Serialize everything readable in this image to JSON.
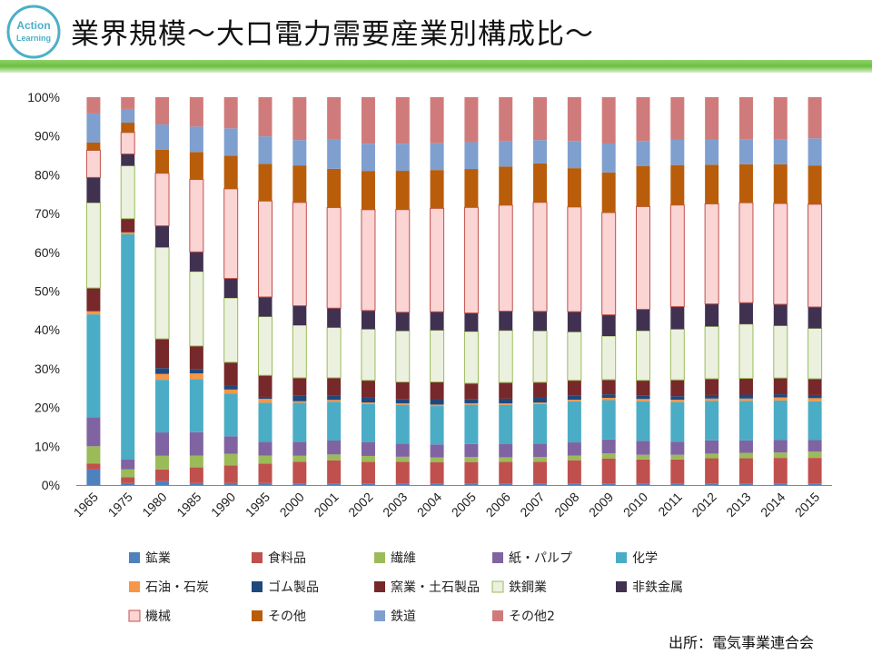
{
  "slide": {
    "title": "業界規模～大口電力需要産業別構成比～",
    "logo_text_line1": "Action",
    "logo_text_line2": "Learning",
    "source": "出所：電気事業連合会",
    "accent_color": "#6cbf3f",
    "logo_color": "#4bb0c8"
  },
  "chart_data": {
    "type": "bar",
    "stacked": true,
    "percent": true,
    "title": "",
    "xlabel": "",
    "ylabel": "",
    "ylim": [
      0,
      100
    ],
    "yticks": [
      "0%",
      "10%",
      "20%",
      "30%",
      "40%",
      "50%",
      "60%",
      "70%",
      "80%",
      "90%",
      "100%"
    ],
    "grid": false,
    "legend_position": "bottom",
    "categories": [
      "1965",
      "1975",
      "1980",
      "1985",
      "1990",
      "1995",
      "2000",
      "2001",
      "2002",
      "2003",
      "2004",
      "2005",
      "2006",
      "2007",
      "2008",
      "2009",
      "2010",
      "2011",
      "2012",
      "2013",
      "2014",
      "2015"
    ],
    "series": [
      {
        "name": "鉱業",
        "color": "#4f81bd",
        "values": [
          4,
          0.5,
          1,
          0.5,
          0.5,
          0.5,
          0.4,
          0.4,
          0.4,
          0.4,
          0.4,
          0.4,
          0.4,
          0.4,
          0.4,
          0.4,
          0.4,
          0.4,
          0.4,
          0.4,
          0.4,
          0.4
        ]
      },
      {
        "name": "食料品",
        "color": "#c0504d",
        "values": [
          1.5,
          1.5,
          3,
          4,
          4.5,
          5,
          5.6,
          6,
          5.6,
          5.6,
          5.6,
          5.6,
          5.6,
          5.6,
          6,
          6.5,
          6.2,
          6.2,
          6.5,
          6.5,
          6.6,
          6.6
        ]
      },
      {
        "name": "繊維",
        "color": "#9bbb59",
        "values": [
          4.5,
          2,
          3.5,
          3,
          3,
          2,
          1.5,
          1.5,
          1.5,
          1.3,
          1.2,
          1.3,
          1.2,
          1.2,
          1.2,
          1.3,
          1.2,
          1.2,
          1.2,
          1.4,
          1.4,
          1.6
        ]
      },
      {
        "name": "紙・パルプ",
        "color": "#8064a2",
        "values": [
          7.5,
          2.5,
          6,
          6,
          4.5,
          3.5,
          3.6,
          3.6,
          3.6,
          3.4,
          3.4,
          3.4,
          3.4,
          3.4,
          3.4,
          3.6,
          3.6,
          3.4,
          3.4,
          3.2,
          3.2,
          3
        ]
      },
      {
        "name": "化学",
        "color": "#4bacc6",
        "values": [
          26.5,
          57.5,
          13.5,
          13.5,
          11,
          10,
          10,
          10,
          9.8,
          10,
          10,
          10.2,
          10.2,
          10.2,
          10.6,
          10.2,
          10.2,
          10.2,
          10.2,
          10.2,
          10.2,
          10
        ]
      },
      {
        "name": "石油・石炭",
        "color": "#f79646",
        "values": [
          0.8,
          0.5,
          1.5,
          1.5,
          1,
          1,
          0.4,
          0.5,
          0.4,
          0.4,
          0.4,
          0.4,
          0.4,
          0.4,
          0.4,
          0.6,
          0.6,
          0.6,
          0.6,
          0.6,
          0.8,
          0.8
        ]
      },
      {
        "name": "ゴム製品",
        "color": "#1f497d",
        "values": [
          0,
          0,
          1.5,
          1,
          1,
          0.5,
          1.5,
          1.2,
          1.2,
          1,
          1.4,
          1,
          1.2,
          1.2,
          1,
          0.9,
          0.8,
          0.9,
          0.9,
          1,
          0.8,
          0.8
        ]
      },
      {
        "name": "窯業・土石製品",
        "color": "#77282a",
        "values": [
          6,
          3.5,
          7.5,
          6,
          6,
          5.5,
          4.5,
          4.5,
          4.5,
          4.5,
          4.5,
          4.2,
          4.2,
          4,
          4,
          3.8,
          4,
          4.2,
          4.2,
          4.2,
          4.2,
          4.2
        ]
      },
      {
        "name": "鉄鋼業",
        "color": "#ebf1de",
        "border": "#9bbb59",
        "values": [
          22,
          13.5,
          23.5,
          19,
          16.5,
          15,
          13.5,
          13,
          13.2,
          13.2,
          13.5,
          13.5,
          13.5,
          13.2,
          12.5,
          11.3,
          12.8,
          13.1,
          13.5,
          14,
          13.5,
          13
        ]
      },
      {
        "name": "非鉄金属",
        "color": "#403151",
        "values": [
          6.5,
          3,
          5.5,
          5,
          5,
          5,
          5,
          5,
          4.8,
          4.8,
          4.8,
          4.8,
          5,
          5,
          5.2,
          5.5,
          5.5,
          5.8,
          5.8,
          5.5,
          5.5,
          5.5
        ]
      },
      {
        "name": "機械",
        "color": "#fbd4d4",
        "border": "#c0504d",
        "values": [
          7,
          5.5,
          13.5,
          18.5,
          23,
          24.5,
          26.5,
          26,
          26,
          26.5,
          27,
          27.5,
          27.5,
          28,
          27,
          26.5,
          26.5,
          26.2,
          25.8,
          25.8,
          26,
          26.5
        ]
      },
      {
        "name": "その他",
        "color": "#b95d0b",
        "values": [
          2,
          2.5,
          6,
          7,
          8.5,
          9.5,
          9.5,
          10,
          10,
          10,
          10,
          10,
          10,
          10,
          10,
          10.4,
          10.4,
          10.3,
          10.1,
          9.9,
          10.1,
          10
        ]
      },
      {
        "name": "鉄道",
        "color": "#7f9fcf",
        "values": [
          7.5,
          3.5,
          6.5,
          6.5,
          7,
          7,
          6.5,
          7.5,
          7,
          7,
          7,
          7,
          6.5,
          6,
          7,
          7.5,
          6.5,
          6.5,
          6.5,
          6.5,
          6.5,
          7
        ]
      },
      {
        "name": "その他2",
        "color": "#d07b7b",
        "values": [
          4.2,
          3,
          7,
          7.5,
          8,
          10,
          11,
          11,
          12,
          12,
          12,
          11.7,
          11.5,
          11,
          11.3,
          12,
          11.3,
          11,
          10.9,
          10.8,
          10.8,
          10.6
        ]
      }
    ]
  }
}
